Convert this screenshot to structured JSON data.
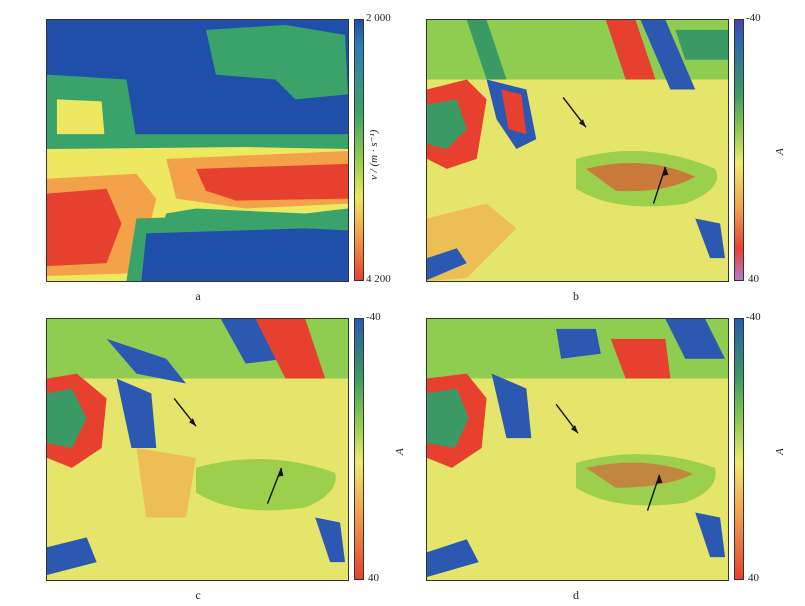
{
  "panels": {
    "a": {
      "caption": "a",
      "colorbar_top": "2 000",
      "colorbar_bottom": "4 200",
      "colorbar_label": "v / (m · s⁻¹)"
    },
    "b": {
      "caption": "b",
      "colorbar_top": "-40",
      "colorbar_bottom": "40",
      "colorbar_label": "A"
    },
    "c": {
      "caption": "c",
      "colorbar_top": "-40",
      "colorbar_bottom": "40",
      "colorbar_label": "A"
    },
    "d": {
      "caption": "d",
      "colorbar_top": "-40",
      "colorbar_bottom": "40",
      "colorbar_label": "A"
    }
  },
  "colors": {
    "blue": "#1f4fa8",
    "green": "#3aa36a",
    "light_green": "#9ccf4c",
    "yellow": "#eee860",
    "orange": "#f3a24a",
    "red": "#e8402f"
  }
}
